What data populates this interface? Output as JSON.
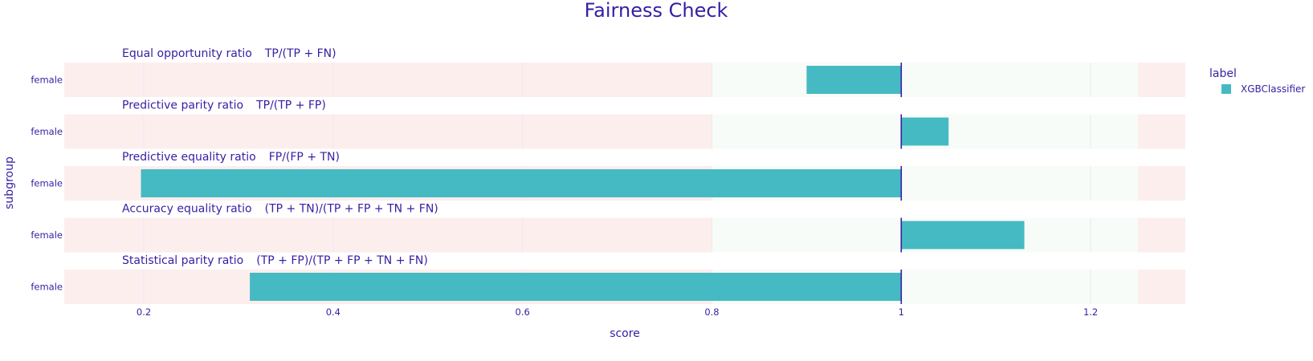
{
  "chart_data": {
    "type": "bar",
    "orientation": "horizontal",
    "title": "Fairness Check",
    "xlabel": "score",
    "ylabel": "subgroup",
    "xlim": [
      0.116,
      1.3
    ],
    "baseline": 1,
    "x_ticks": [
      {
        "value": 0.2,
        "label": "0.2"
      },
      {
        "value": 0.4,
        "label": "0.4"
      },
      {
        "value": 0.6,
        "label": "0.6"
      },
      {
        "value": 0.8,
        "label": "0.8"
      },
      {
        "value": 1,
        "label": "1"
      },
      {
        "value": 1.2,
        "label": "1.2"
      }
    ],
    "zones": [
      {
        "from": 0.116,
        "to": 0.8,
        "color": "#fdeeee"
      },
      {
        "from": 0.8,
        "to": 1.25,
        "color": "#f8fcf8"
      },
      {
        "from": 1.25,
        "to": 1.3,
        "color": "#fdeeee"
      }
    ],
    "legend": {
      "title": "label",
      "placement": "right-top",
      "entries": [
        "XGBClassifier"
      ]
    },
    "series_color": "#46bac2",
    "baseline_color": "#371ea3",
    "panels": [
      {
        "metric": "Equal opportunity ratio",
        "formula": "TP/(TP + FN)",
        "category": "female",
        "series": "XGBClassifier",
        "value": 0.9
      },
      {
        "metric": "Predictive parity ratio",
        "formula": "TP/(TP + FP)",
        "category": "female",
        "series": "XGBClassifier",
        "value": 1.05
      },
      {
        "metric": "Predictive equality ratio",
        "formula": "FP/(FP + TN)",
        "category": "female",
        "series": "XGBClassifier",
        "value": 0.197
      },
      {
        "metric": "Accuracy equality ratio",
        "formula": "(TP + TN)/(TP + FP + TN + FN)",
        "category": "female",
        "series": "XGBClassifier",
        "value": 1.13
      },
      {
        "metric": "Statistical parity ratio",
        "formula": "(TP + FP)/(TP + FP + TN + FN)",
        "category": "female",
        "series": "XGBClassifier",
        "value": 0.312
      }
    ]
  }
}
